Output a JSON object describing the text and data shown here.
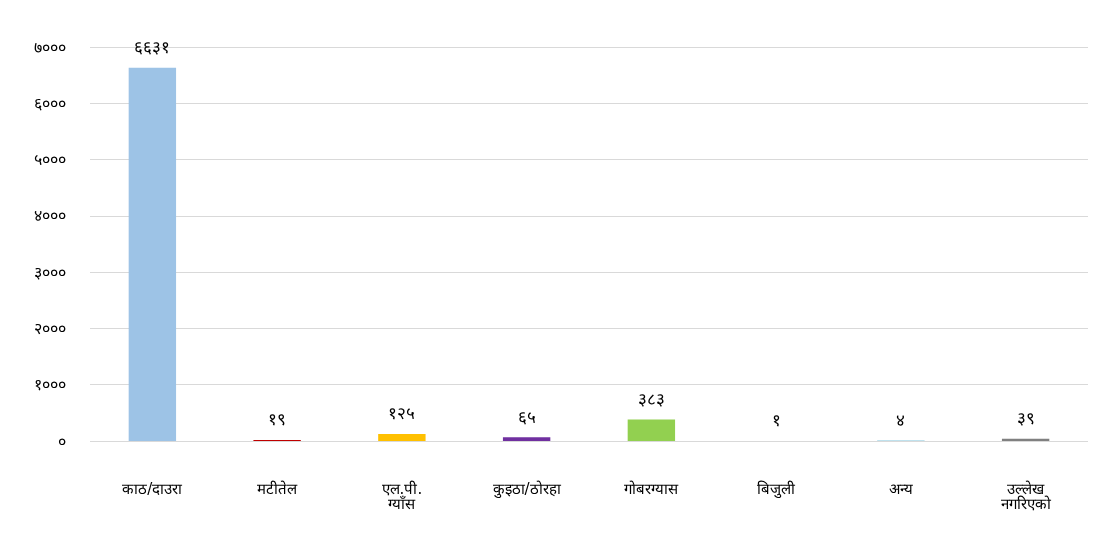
{
  "chart_data": {
    "type": "bar",
    "categories": [
      "काठ/दाउरा",
      "मटीतेल",
      "एल.पी. ग्याँस",
      "कुइठा/ठोरहा",
      "गोबरग्यास",
      "बिजुली",
      "अन्य",
      "उल्लेख नगरिएको"
    ],
    "values": [
      6631,
      19,
      125,
      65,
      383,
      1,
      4,
      39
    ],
    "colors": [
      "#9dc3e6",
      "#c00000",
      "#ffc000",
      "#7030a0",
      "#92d050",
      "#1f5f9e",
      "#0089b8",
      "#808080"
    ],
    "value_labels": [
      "६६३१",
      "१९",
      "१२५",
      "६५",
      "३८३",
      "१",
      "४",
      "३९"
    ],
    "ylim": [
      0,
      7000
    ],
    "yticks": [
      {
        "value": 0,
        "label": "०"
      },
      {
        "value": 1000,
        "label": "१०००"
      },
      {
        "value": 2000,
        "label": "२०००"
      },
      {
        "value": 3000,
        "label": "३०००"
      },
      {
        "value": 4000,
        "label": "४०००"
      },
      {
        "value": 5000,
        "label": "५०००"
      },
      {
        "value": 6000,
        "label": "६०००"
      },
      {
        "value": 7000,
        "label": "७०००"
      }
    ],
    "grid": "y"
  }
}
